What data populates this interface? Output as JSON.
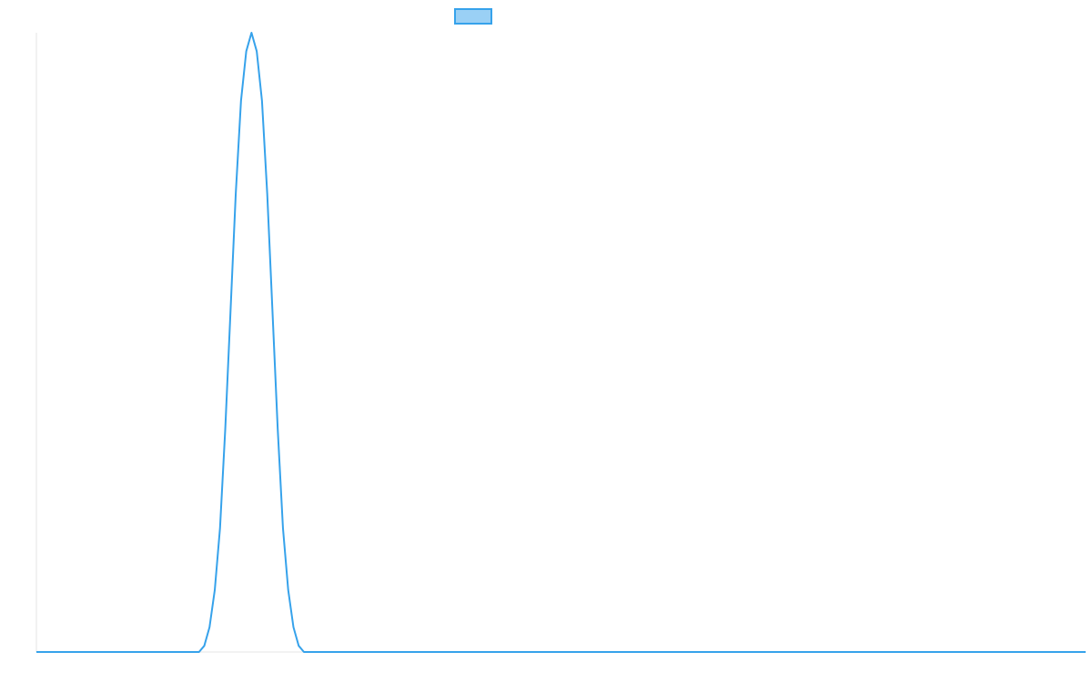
{
  "chart_data": {
    "type": "line",
    "title": "",
    "xlabel": "",
    "ylabel": "",
    "grid": false,
    "legend": "top-center",
    "xlim": [
      0,
      100
    ],
    "ylim": [
      0,
      1
    ],
    "series": [
      {
        "name": "",
        "color": "#36a2eb",
        "fill": "#9ad0f5",
        "x": [
          0,
          15.5,
          16,
          16.5,
          17,
          17.5,
          18,
          18.5,
          19,
          19.5,
          20,
          20.5,
          21,
          21.5,
          22,
          22.5,
          23,
          23.5,
          24,
          24.5,
          25,
          25.5,
          26,
          100
        ],
        "y": [
          0,
          0,
          0.01,
          0.04,
          0.1,
          0.2,
          0.36,
          0.55,
          0.74,
          0.89,
          0.97,
          1.0,
          0.97,
          0.89,
          0.74,
          0.55,
          0.36,
          0.2,
          0.1,
          0.04,
          0.01,
          0,
          0,
          0
        ]
      }
    ]
  }
}
